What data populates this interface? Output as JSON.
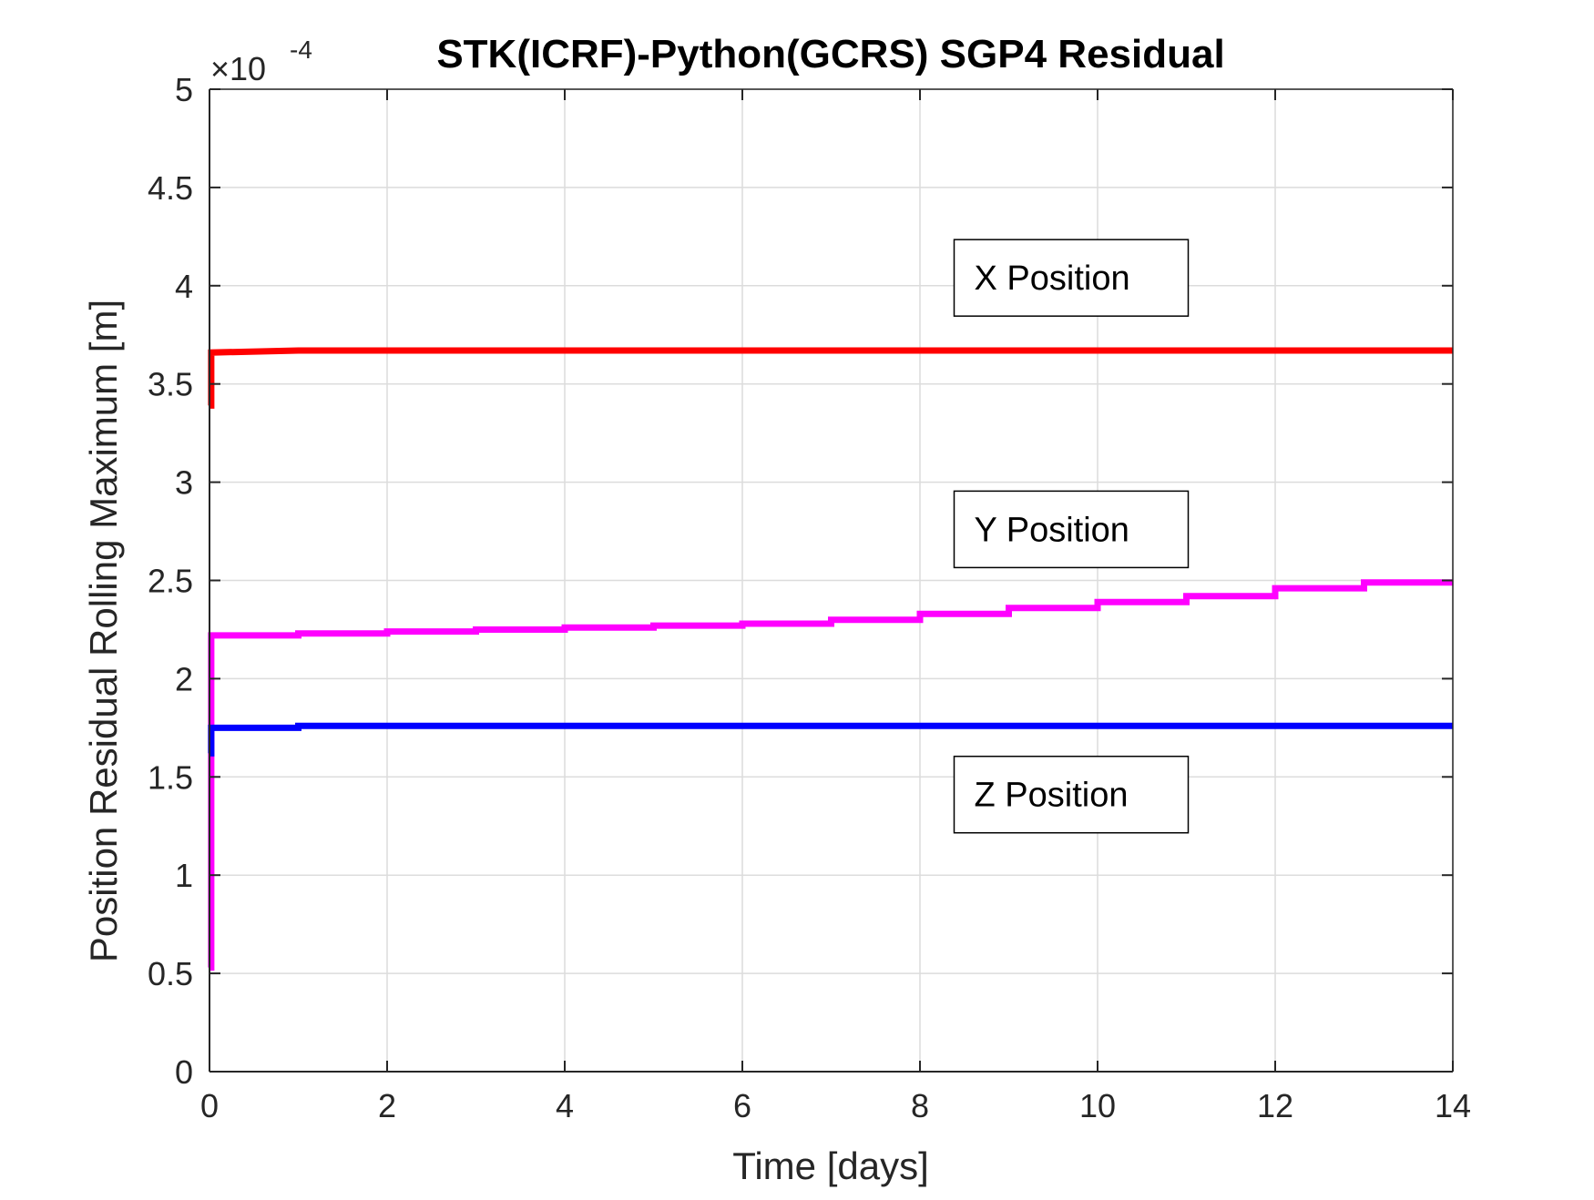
{
  "chart_data": {
    "type": "line",
    "title": "STK(ICRF)-Python(GCRS) SGP4 Residual",
    "xlabel": "Time [days]",
    "ylabel": "Position Residual Rolling Maximum [m]",
    "y_exponent_label": "×10",
    "y_exponent_power": "-4",
    "xlim": [
      0,
      14
    ],
    "ylim": [
      0,
      5
    ],
    "x_ticks": [
      "0",
      "2",
      "4",
      "6",
      "8",
      "10",
      "12",
      "14"
    ],
    "y_ticks": [
      "0",
      "0.5",
      "1",
      "1.5",
      "2",
      "2.5",
      "3",
      "3.5",
      "4",
      "4.5",
      "5"
    ],
    "grid": true,
    "y_scale_note": "values in units of 10^-4 m",
    "series": [
      {
        "name": "X Position",
        "color": "#ff0000",
        "x": [
          0,
          0.02,
          0.02,
          1,
          14
        ],
        "y": [
          3.39,
          3.39,
          3.66,
          3.67,
          3.67
        ]
      },
      {
        "name": "Y Position",
        "color": "#ff00ff",
        "x": [
          0,
          0.02,
          0.02,
          1,
          1,
          2,
          2,
          3,
          3,
          4,
          4,
          5,
          5,
          6,
          6,
          7,
          7,
          8,
          8,
          9,
          9,
          10,
          10,
          11,
          11,
          12,
          12,
          13,
          13,
          14
        ],
        "y": [
          0.53,
          0.53,
          2.22,
          2.22,
          2.23,
          2.23,
          2.24,
          2.24,
          2.25,
          2.25,
          2.26,
          2.26,
          2.27,
          2.27,
          2.28,
          2.28,
          2.3,
          2.3,
          2.33,
          2.33,
          2.36,
          2.36,
          2.39,
          2.39,
          2.42,
          2.42,
          2.46,
          2.46,
          2.49,
          2.49
        ]
      },
      {
        "name": "Z Position",
        "color": "#0000ff",
        "x": [
          0,
          0.02,
          0.02,
          1,
          1,
          14
        ],
        "y": [
          1.62,
          1.62,
          1.75,
          1.75,
          1.76,
          1.76
        ]
      }
    ],
    "annotations": [
      {
        "text": "X Position",
        "x": 9.0,
        "y": 4.04
      },
      {
        "text": "Y Position",
        "x": 9.0,
        "y": 2.76
      },
      {
        "text": "Z Position",
        "x": 9.0,
        "y": 1.41
      }
    ]
  }
}
